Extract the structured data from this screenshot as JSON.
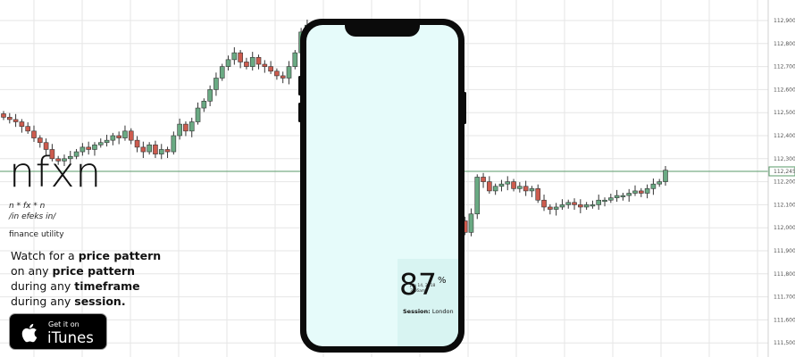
{
  "app": {
    "title": "nfxn",
    "formula": "n * fx * n",
    "phonetic": "/in efeks in/",
    "category": "finance utility"
  },
  "tagline": {
    "line1_prefix": "Watch for a ",
    "line1_bold": "price pattern",
    "line2_prefix": "on any ",
    "line2_bold": "price pattern",
    "line3_prefix": "during any ",
    "line3_bold": "timeframe",
    "line4_prefix": "during any ",
    "line4_bold": "session."
  },
  "store_badge": {
    "small_text": "Get it on",
    "big_text": "iTunes"
  },
  "phone_screen": {
    "date": "jun 14, 2018",
    "time": "3:46am",
    "percent": "87",
    "percent_sign": "%",
    "session_label": "Session:",
    "session_value": "London"
  },
  "colors": {
    "bull": "#6aaa83",
    "bear": "#cd5b4e",
    "grid": "#e6e6e6",
    "current_price_line": "#5a9a6a",
    "phone_screen_bg": "#e6fbfa"
  },
  "chart_data": {
    "type": "candlestick",
    "price_axis_labels": [
      "112,900",
      "112,800",
      "112,700",
      "112,600",
      "112,500",
      "112,400",
      "112,300",
      "112,200",
      "112,100",
      "112,000",
      "111,900",
      "111,800",
      "111,700",
      "111,600",
      "111,500",
      "111,400"
    ],
    "price_axis_values": [
      112900,
      112800,
      112700,
      112600,
      112500,
      112400,
      112300,
      112200,
      112100,
      112000,
      111900,
      111800,
      111700,
      111600,
      111500,
      111400
    ],
    "current_price_label": "112,245",
    "current_price": 112245,
    "close_series": [
      112480,
      112470,
      112460,
      112440,
      112420,
      112390,
      112370,
      112340,
      112300,
      112290,
      112300,
      112310,
      112330,
      112350,
      112340,
      112360,
      112370,
      112380,
      112400,
      112390,
      112420,
      112380,
      112350,
      112330,
      112360,
      112320,
      112340,
      112330,
      112400,
      112450,
      112420,
      112460,
      112520,
      112550,
      112600,
      112650,
      112700,
      112730,
      112760,
      112720,
      112700,
      112740,
      112710,
      112700,
      112680,
      112660,
      112650,
      112700,
      112760,
      112850,
      112880,
      112820,
      112800,
      112780,
      112700,
      112400,
      112200,
      112050,
      111900,
      111800,
      111700,
      111550,
      111650,
      111800,
      111900,
      112000,
      112030,
      111980,
      111950,
      111900,
      111960,
      112000,
      112050,
      112020,
      111990,
      112030,
      111980,
      112060,
      112220,
      112200,
      112160,
      112180,
      112190,
      112200,
      112170,
      112180,
      112160,
      112170,
      112120,
      112090,
      112080,
      112090,
      112100,
      112110,
      112100,
      112090,
      112100,
      112100,
      112120,
      112120,
      112130,
      112140,
      112140,
      112150,
      112160,
      112150,
      112170,
      112190,
      112200,
      112250
    ]
  }
}
